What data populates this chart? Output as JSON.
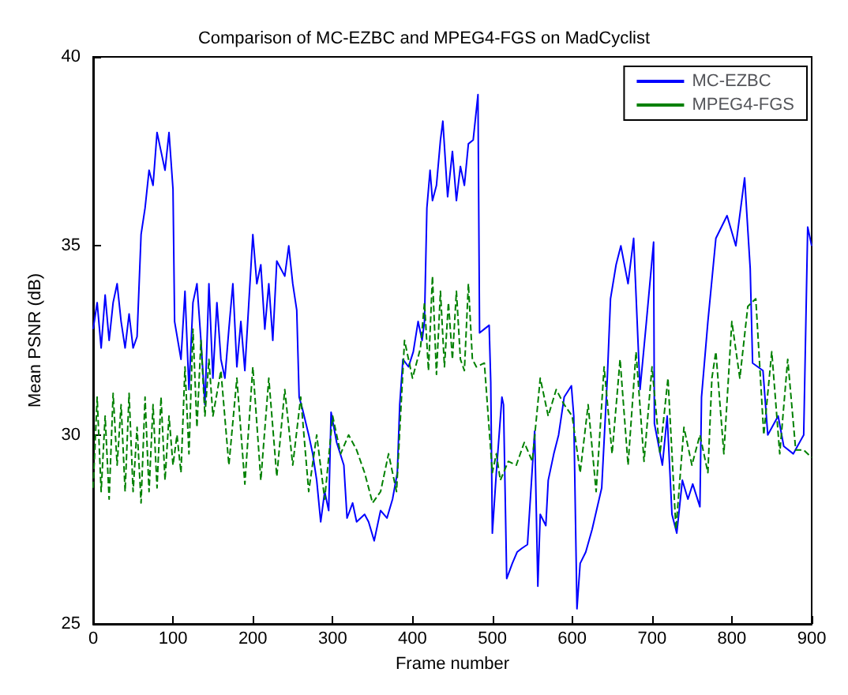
{
  "chart_data": {
    "type": "line",
    "title": "Comparison of MC-EZBC and MPEG4-FGS on MadCyclist",
    "xlabel": "Frame number",
    "ylabel": "Mean PSNR (dB)",
    "xlim": [
      0,
      900
    ],
    "xticks": [
      0,
      100,
      200,
      300,
      400,
      500,
      600,
      700,
      800,
      900
    ],
    "ylim": [
      25,
      40
    ],
    "yticks": [
      25,
      30,
      35,
      40
    ],
    "grid": false,
    "legend": "top right",
    "marker": "none",
    "series": [
      {
        "name": "MC-EZBC",
        "color": "#0000ff",
        "line_style": "solid",
        "x": [
          0,
          5,
          10,
          15,
          20,
          25,
          30,
          35,
          40,
          45,
          50,
          55,
          60,
          65,
          70,
          75,
          80,
          85,
          90,
          95,
          100,
          102,
          110,
          115,
          120,
          125,
          130,
          135,
          140,
          145,
          150,
          155,
          160,
          165,
          170,
          175,
          180,
          185,
          190,
          200,
          205,
          210,
          215,
          220,
          225,
          230,
          240,
          245,
          250,
          255,
          258,
          262,
          270,
          275,
          280,
          285,
          290,
          295,
          298,
          305,
          314,
          318,
          325,
          330,
          340,
          345,
          352,
          360,
          368,
          375,
          381,
          384,
          388,
          395,
          401,
          407,
          412,
          415,
          418,
          422,
          425,
          430,
          435,
          438,
          444,
          450,
          455,
          460,
          465,
          470,
          476,
          482,
          484,
          490,
          496,
          498,
          500,
          505,
          512,
          514,
          518,
          525,
          531,
          537,
          544,
          553,
          557,
          560,
          567,
          570,
          577,
          583,
          590,
          599,
          602,
          606,
          610,
          617,
          625,
          637,
          644,
          648,
          655,
          661,
          670,
          677,
          685,
          693,
          702,
          703,
          713,
          719,
          725,
          731,
          738,
          745,
          751,
          760,
          762,
          770,
          780,
          794,
          805,
          816,
          823,
          826,
          839,
          845,
          858,
          865,
          877,
          890,
          895,
          900
        ],
        "values": [
          32.8,
          33.5,
          32.3,
          33.7,
          32.5,
          33.5,
          34.0,
          33.0,
          32.3,
          33.2,
          32.3,
          32.6,
          35.3,
          36.0,
          37.0,
          36.6,
          38.0,
          37.5,
          37.0,
          38.0,
          36.5,
          33.0,
          32.0,
          33.8,
          31.2,
          33.5,
          34.0,
          32.5,
          30.8,
          34.0,
          31.5,
          33.5,
          32.0,
          31.5,
          32.8,
          34.0,
          31.8,
          33.0,
          31.7,
          35.3,
          34.0,
          34.5,
          32.8,
          34.0,
          32.5,
          34.6,
          34.2,
          35.0,
          34.0,
          33.3,
          31.0,
          30.7,
          30.0,
          29.5,
          28.8,
          27.7,
          28.5,
          28.0,
          30.6,
          29.8,
          29.2,
          27.8,
          28.2,
          27.7,
          27.9,
          27.7,
          27.2,
          28.0,
          27.8,
          28.3,
          29.0,
          30.8,
          32.0,
          31.8,
          32.2,
          33.0,
          32.5,
          33.0,
          36.0,
          37.0,
          36.2,
          36.6,
          37.8,
          38.3,
          36.3,
          37.5,
          36.2,
          37.1,
          36.6,
          37.7,
          37.8,
          39.0,
          32.7,
          32.8,
          32.9,
          31.4,
          27.4,
          29.0,
          31.0,
          30.8,
          26.2,
          26.6,
          26.9,
          27.0,
          27.1,
          30.1,
          26.0,
          27.9,
          27.6,
          28.8,
          29.5,
          30.0,
          31.0,
          31.3,
          30.5,
          25.4,
          26.6,
          26.9,
          27.5,
          28.6,
          31.5,
          33.6,
          34.5,
          35.0,
          34.0,
          35.2,
          31.2,
          33.0,
          35.1,
          30.3,
          29.2,
          30.5,
          27.9,
          27.4,
          28.8,
          28.3,
          28.7,
          28.1,
          31.0,
          33.0,
          35.2,
          35.8,
          35.0,
          36.8,
          34.4,
          31.9,
          31.7,
          30.0,
          30.5,
          29.7,
          29.5,
          30.0,
          35.5,
          35.0
        ]
      },
      {
        "name": "MPEG4-FGS",
        "color": "#008000",
        "line_style": "dashed",
        "x": [
          0,
          5,
          10,
          15,
          20,
          25,
          30,
          35,
          40,
          45,
          50,
          55,
          60,
          65,
          70,
          75,
          80,
          85,
          90,
          95,
          100,
          105,
          110,
          115,
          120,
          125,
          130,
          135,
          140,
          145,
          150,
          160,
          170,
          180,
          190,
          200,
          210,
          220,
          230,
          240,
          250,
          260,
          270,
          280,
          290,
          300,
          310,
          320,
          330,
          340,
          350,
          360,
          370,
          380,
          385,
          390,
          400,
          410,
          415,
          420,
          425,
          430,
          435,
          440,
          445,
          450,
          455,
          460,
          465,
          470,
          475,
          480,
          490,
          500,
          505,
          510,
          520,
          530,
          540,
          550,
          560,
          570,
          580,
          590,
          600,
          610,
          620,
          630,
          640,
          650,
          660,
          670,
          680,
          690,
          700,
          710,
          720,
          730,
          740,
          750,
          760,
          770,
          775,
          780,
          790,
          800,
          810,
          820,
          830,
          840,
          850,
          860,
          870,
          880,
          890,
          900
        ],
        "values": [
          28.6,
          31.0,
          28.5,
          30.5,
          28.3,
          31.1,
          29.2,
          30.8,
          28.5,
          31.1,
          28.5,
          30.2,
          28.2,
          31.0,
          28.5,
          30.8,
          28.6,
          31.0,
          28.8,
          30.5,
          29.2,
          30.0,
          29.0,
          31.8,
          29.5,
          32.8,
          30.2,
          32.5,
          30.5,
          32.0,
          30.5,
          31.7,
          29.2,
          31.5,
          28.7,
          31.8,
          28.8,
          31.5,
          28.9,
          31.2,
          29.2,
          31.0,
          28.5,
          30.0,
          28.3,
          30.5,
          29.5,
          30.0,
          29.6,
          29.0,
          28.2,
          28.5,
          29.5,
          28.5,
          30.5,
          32.5,
          31.5,
          32.3,
          33.5,
          31.7,
          34.2,
          31.6,
          33.8,
          31.8,
          33.5,
          32.0,
          33.8,
          32.0,
          31.7,
          34.0,
          32.0,
          31.8,
          31.9,
          29.0,
          29.5,
          28.8,
          29.3,
          29.2,
          29.8,
          29.3,
          31.5,
          30.5,
          31.2,
          30.8,
          30.5,
          29.0,
          30.8,
          28.5,
          31.8,
          29.5,
          32.0,
          29.2,
          32.2,
          29.3,
          31.8,
          29.5,
          31.5,
          27.5,
          30.2,
          29.2,
          30.0,
          29.0,
          31.5,
          32.2,
          29.5,
          33.0,
          31.5,
          33.4,
          33.6,
          30.0,
          32.2,
          29.5,
          32.0,
          29.6,
          29.6,
          29.4
        ]
      }
    ]
  }
}
